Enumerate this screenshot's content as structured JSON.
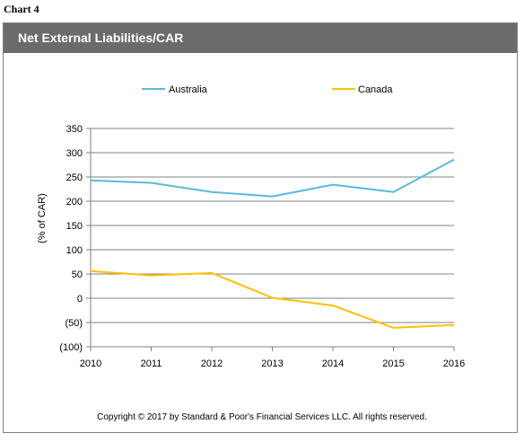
{
  "chart_label": "Chart 4",
  "header_title": "Net External Liabilities/CAR",
  "footer": "Copyright © 2017 by Standard & Poor's Financial Services LLC. All rights reserved.",
  "colors": {
    "Australia": "#5bb9dd",
    "Canada": "#ffc000",
    "header_bg": "#6b6b6b",
    "grid": "#808080"
  },
  "chart_data": {
    "type": "line",
    "title": "Net External Liabilities/CAR",
    "xlabel": "",
    "ylabel": "(% of CAR)",
    "x": [
      "2010",
      "2011",
      "2012",
      "2013",
      "2014",
      "2015",
      "2016"
    ],
    "ylim": [
      -100,
      350
    ],
    "yticks": [
      350,
      300,
      250,
      200,
      150,
      100,
      50,
      0,
      -50,
      -100
    ],
    "ytick_labels": [
      "350",
      "300",
      "250",
      "200",
      "150",
      "100",
      "50",
      "0",
      "(50)",
      "(100)"
    ],
    "grid": true,
    "legend_position": "top",
    "series": [
      {
        "name": "Australia",
        "values": [
          243,
          238,
          219,
          210,
          234,
          219,
          286
        ]
      },
      {
        "name": "Canada",
        "values": [
          56,
          47,
          52,
          1,
          -15,
          -61,
          -55
        ]
      }
    ]
  }
}
